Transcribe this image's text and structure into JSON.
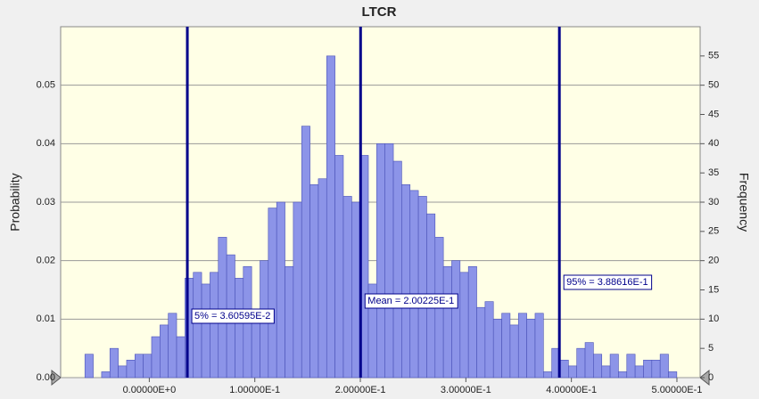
{
  "chart_data": {
    "type": "histogram",
    "title": "LTCR",
    "y_label": "Probability",
    "y2_label": "Frequency",
    "bins": [
      -0.061,
      -0.0531,
      -0.0452,
      -0.0373,
      -0.0294,
      -0.0215,
      -0.0136,
      -0.0057,
      0.0022,
      0.0101,
      0.018,
      0.0259,
      0.0338,
      0.0417,
      0.0496,
      0.0575,
      0.0654,
      0.0733,
      0.0812,
      0.0891,
      0.097,
      0.1049,
      0.1128,
      0.1207,
      0.1286,
      0.1365,
      0.1444,
      0.1523,
      0.1602,
      0.1681,
      0.176,
      0.1839,
      0.1918,
      0.1997,
      0.2076,
      0.2155,
      0.2234,
      0.2313,
      0.2392,
      0.2471,
      0.255,
      0.2629,
      0.2708,
      0.2787,
      0.2866,
      0.2945,
      0.3024,
      0.3103,
      0.3182,
      0.3261,
      0.334,
      0.3419,
      0.3498,
      0.3577,
      0.3656,
      0.3735,
      0.3814,
      0.3893,
      0.3972,
      0.4051,
      0.413,
      0.4209,
      0.4288,
      0.4367,
      0.4446,
      0.4525,
      0.4604,
      0.4683,
      0.4762,
      0.4841,
      0.492,
      0.4999,
      0.5078
    ],
    "series": [
      {
        "color": "#8c94e8",
        "axis": "y2",
        "values": [
          4,
          0,
          1,
          5,
          2,
          3,
          4,
          4,
          7,
          9,
          11,
          7,
          17,
          18,
          16,
          18,
          24,
          21,
          17,
          19,
          11,
          20,
          29,
          30,
          19,
          30,
          43,
          33,
          34,
          55,
          38,
          31,
          30,
          38,
          16,
          40,
          40,
          37,
          33,
          32,
          31,
          28,
          24,
          19,
          20,
          18,
          19,
          12,
          13,
          10,
          11,
          9,
          11,
          10,
          11,
          1,
          5,
          3,
          2,
          5,
          6,
          4,
          2,
          4,
          1,
          4,
          2,
          3,
          3,
          4,
          1,
          0
        ]
      }
    ],
    "reference_lines": [
      {
        "value": 0.0360595,
        "label": "5% = 3.60595E-2"
      },
      {
        "value": 0.200225,
        "label": "Mean = 2.00225E-1"
      },
      {
        "value": 0.388616,
        "label": "95% = 3.88616E-1"
      }
    ],
    "xlim": [
      -0.084,
      0.522
    ],
    "xticks": [
      {
        "value": 0,
        "label": "0.00000E+0"
      },
      {
        "value": 0.1,
        "label": "1.00000E-1"
      },
      {
        "value": 0.2,
        "label": "2.00000E-1"
      },
      {
        "value": 0.3,
        "label": "3.00000E-1"
      },
      {
        "value": 0.4,
        "label": "4.00000E-1"
      },
      {
        "value": 0.5,
        "label": "5.00000E-1"
      }
    ],
    "ylim": [
      0,
      0.06
    ],
    "yticks": [
      {
        "value": 0,
        "label": "0.00"
      },
      0.01,
      0.02,
      0.03,
      0.04,
      0.05
    ],
    "y2lim": [
      0,
      60
    ],
    "y2ticks": [
      0,
      5,
      10,
      15,
      20,
      25,
      30,
      35,
      40,
      45,
      50,
      55
    ],
    "grid": true
  }
}
